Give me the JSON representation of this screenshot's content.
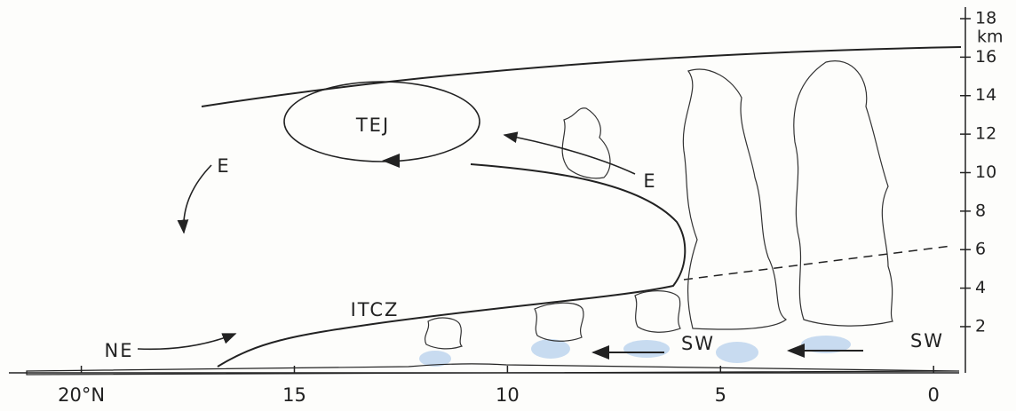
{
  "x_axis": {
    "ticks": [
      {
        "value": 20,
        "label": "20°N"
      },
      15,
      10,
      5,
      0
    ],
    "xlim": [
      21.7,
      -0.6
    ]
  },
  "y_axis": {
    "ticks": [
      2,
      4,
      6,
      8,
      10,
      12,
      14,
      16,
      18
    ],
    "unit": "km",
    "ylim": [
      -0.4,
      18.6
    ]
  },
  "labels": {
    "jet": "TEJ",
    "east_upper": "E",
    "east_mid": "E",
    "itcz": "ITCZ",
    "northeast": "NE",
    "southwest_1": "SW",
    "southwest_2": "SW"
  }
}
